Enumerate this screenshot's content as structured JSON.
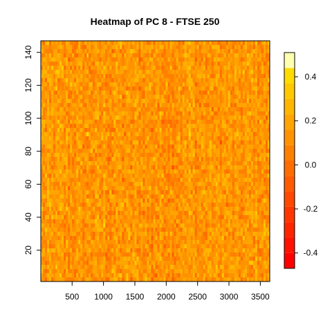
{
  "chart_data": {
    "type": "heatmap",
    "title": "Heatmap of PC 8  - FTSE 250",
    "xlabel": "",
    "ylabel": "",
    "xlim": [
      1,
      3650
    ],
    "ylim": [
      1,
      147
    ],
    "x_ticks": [
      500,
      1000,
      1500,
      2000,
      2500,
      3000,
      3500
    ],
    "y_ticks": [
      20,
      40,
      60,
      80,
      100,
      120,
      140
    ],
    "value_range": [
      -0.47,
      0.51
    ],
    "value_summary": "dense random-like field of PC 8 loadings, mostly between -0.1 and 0.1 (orange), with scattered red and yellow cells",
    "colorbar": {
      "placement": "right",
      "ticks": [
        -0.4,
        -0.2,
        0.0,
        0.2,
        0.4
      ],
      "tick_labels": [
        "-0.4",
        "-0.2",
        "0.0",
        "0.2",
        "0.4"
      ],
      "breaks": [
        -0.47,
        -0.4,
        -0.33,
        -0.26,
        -0.19,
        -0.12,
        -0.05,
        0.02,
        0.09,
        0.16,
        0.23,
        0.3,
        0.37,
        0.44,
        0.51
      ],
      "colors": [
        "#FF0000",
        "#FF1200",
        "#FF2400",
        "#FF3600",
        "#FF4900",
        "#FF5B00",
        "#FF6D00",
        "#FF8000",
        "#FF9200",
        "#FFA400",
        "#FFB600",
        "#FFC800",
        "#FFDB00",
        "#FFED00"
      ],
      "top_color": "#FFFFB0"
    },
    "grid": false
  }
}
